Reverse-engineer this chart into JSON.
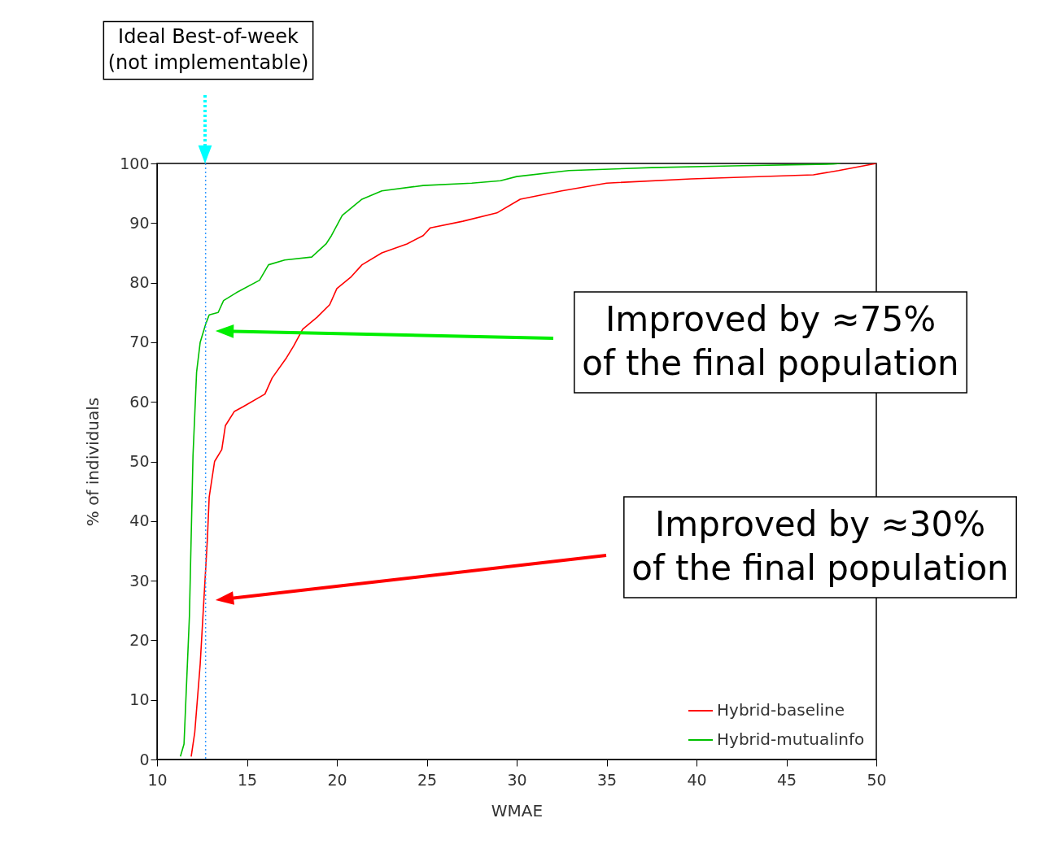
{
  "chart_data": {
    "type": "line",
    "xlabel": "WMAE",
    "ylabel": "% of individuals",
    "xlim": [
      10,
      50
    ],
    "xticks": [
      10,
      15,
      20,
      25,
      30,
      35,
      40,
      45,
      50
    ],
    "ylim": [
      0,
      100
    ],
    "yticks": [
      0,
      10,
      20,
      30,
      40,
      50,
      60,
      70,
      80,
      90,
      100
    ],
    "legend": "bottom right",
    "grid": false,
    "marker": "none",
    "line_style": "solid",
    "series": [
      {
        "name": "Hybrid-baseline",
        "color": "#ff0000",
        "x": [
          11.9,
          12.1,
          12.4,
          12.6,
          12.8,
          12.9,
          13.2,
          13.6,
          13.8,
          14.3,
          14.8,
          16.0,
          16.4,
          17.2,
          17.6,
          18.1,
          18.9,
          19.6,
          20.0,
          20.8,
          21.4,
          22.5,
          23.9,
          24.8,
          25.2,
          27.0,
          28.9,
          30.2,
          32.5,
          35.0,
          39.7,
          46.5,
          47.9,
          50.0
        ],
        "values": [
          0.5,
          4.6,
          16,
          26.5,
          37,
          44,
          50,
          52,
          56,
          58.4,
          59.2,
          61.3,
          64,
          67.4,
          69.4,
          72.2,
          74.2,
          76.3,
          79,
          81,
          83,
          85,
          86.5,
          87.9,
          89.2,
          90.3,
          91.7,
          94,
          95.4,
          96.7,
          97.4,
          98.1,
          98.8,
          100
        ]
      },
      {
        "name": "Hybrid-mutualinfo",
        "color": "#00c000",
        "x": [
          11.3,
          11.5,
          11.8,
          12.0,
          12.2,
          12.4,
          12.7,
          12.9,
          13.4,
          13.7,
          14.4,
          15.7,
          16.2,
          17.1,
          18.6,
          19.4,
          19.7,
          20.3,
          21.4,
          22.5,
          24.8,
          27.5,
          29.1,
          30.0,
          32.9,
          37.5,
          42.0,
          47.6,
          48.0
        ],
        "values": [
          0.5,
          2.6,
          24,
          51,
          65,
          70,
          73,
          74.6,
          75,
          77,
          78.3,
          80.4,
          83,
          83.8,
          84.3,
          86.5,
          87.9,
          91.3,
          94,
          95.4,
          96.3,
          96.7,
          97.1,
          97.8,
          98.8,
          99.3,
          99.6,
          99.9,
          100
        ]
      }
    ],
    "ref_lines": [
      {
        "axis": "x",
        "value": 12.7,
        "color": "#3399ff",
        "line_style": "dotted"
      }
    ],
    "annotations": [
      "Ideal Best-of-week\n(not implementable)",
      "Improved by ≈75%\nof the final population",
      "Improved by ≈30%\nof the final population"
    ]
  }
}
